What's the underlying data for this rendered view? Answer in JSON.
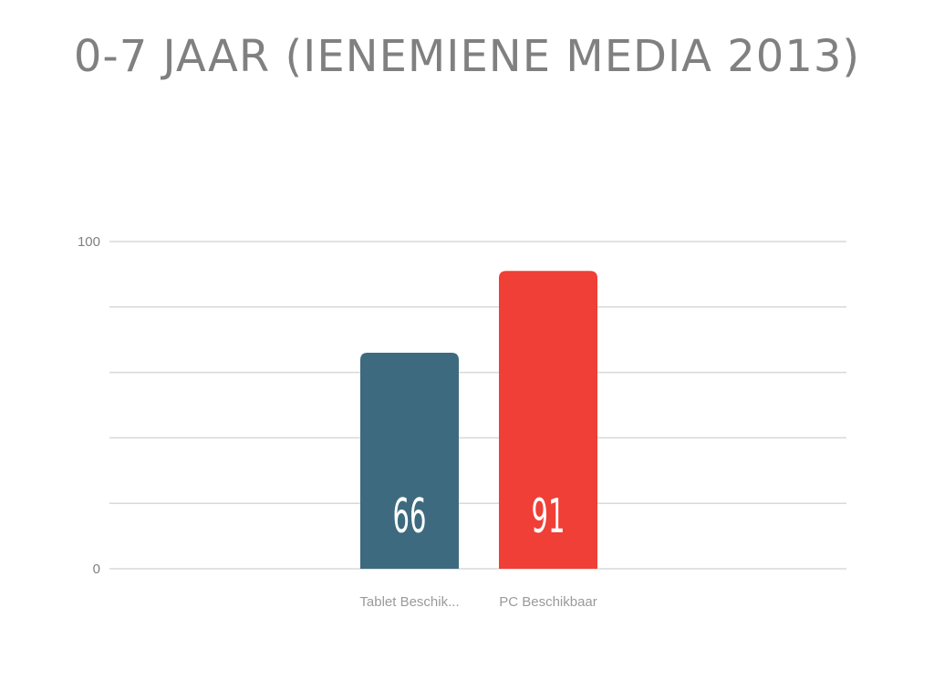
{
  "chart_data": {
    "type": "bar",
    "title": "0-7 JAAR (IENEMIENE MEDIA 2013)",
    "categories": [
      "Tablet Beschik...",
      "PC Beschikbaar"
    ],
    "values": [
      66,
      91
    ],
    "value_labels": [
      "66",
      "91"
    ],
    "colors": [
      "#3d6a7e",
      "#ef3f36"
    ],
    "ylim": [
      0,
      100
    ],
    "y_tick_labels": [
      "0",
      "100"
    ],
    "gridlines": [
      0,
      20,
      40,
      60,
      80,
      100
    ],
    "grid": true,
    "xlabel": "",
    "ylabel": ""
  }
}
